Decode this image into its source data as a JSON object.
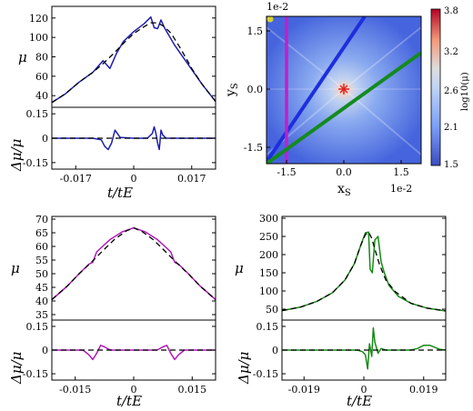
{
  "colors": {
    "panel1": "#1f1fb0",
    "panel3": "#b018b8",
    "panel4": "#168a16",
    "model": "#000000",
    "line_blue": "#1e2fdc",
    "line_magenta": "#c020c8",
    "line_green": "#158a20",
    "source_dot": "#d8d030",
    "lens": "#e02020"
  },
  "map": {
    "xlabel": "x",
    "xlabel_sub": "S",
    "ylabel": "y",
    "ylabel_sub": "S",
    "offset_top": "1e-2",
    "offset_bottom": "1e-2",
    "xticks": [
      "-1.5",
      "0.0",
      "1.5"
    ],
    "yticks": [
      "1.5",
      "0.0",
      "-1.5"
    ],
    "colorbar_label": "log10(μ)",
    "colorbar_ticks": [
      "3.8",
      "3.2",
      "2.6",
      "2.1",
      "1.5"
    ],
    "colormap": "coolwarm"
  },
  "chart_data": [
    {
      "id": "panel1-mag",
      "type": "line",
      "xlabel": "t/tE",
      "ylabel": "μ",
      "xlim": [
        -0.024,
        0.024
      ],
      "ylim": [
        28,
        132
      ],
      "yticks": [
        "120",
        "100",
        "80",
        "60",
        "40"
      ],
      "xticks": [],
      "series": [
        {
          "role": "data",
          "color": "#1f1fb0",
          "x": [
            -0.024,
            -0.02,
            -0.016,
            -0.012,
            -0.009,
            -0.007,
            -0.005,
            -0.003,
            0.0,
            0.003,
            0.005,
            0.006,
            0.007,
            0.008,
            0.009,
            0.01,
            0.012,
            0.014,
            0.017,
            0.02,
            0.024
          ],
          "y": [
            33,
            42,
            54,
            64,
            76,
            68,
            84,
            96,
            106,
            114,
            121,
            110,
            109,
            118,
            110,
            104,
            92,
            82,
            67,
            52,
            34
          ]
        },
        {
          "role": "model",
          "color": "#000000",
          "dashed": true,
          "x": [
            -0.024,
            -0.02,
            -0.016,
            -0.012,
            -0.009,
            -0.006,
            -0.003,
            0.0,
            0.003,
            0.005,
            0.007,
            0.009,
            0.011,
            0.014,
            0.017,
            0.02,
            0.024
          ],
          "y": [
            33,
            42,
            54,
            64,
            73,
            83,
            94,
            104,
            111,
            115,
            115,
            111,
            104,
            87,
            68,
            52,
            34
          ]
        }
      ]
    },
    {
      "id": "panel1-resid",
      "type": "line",
      "xlabel": "t/tE",
      "ylabel": "Δμ/μ",
      "xlim": [
        -0.024,
        0.024
      ],
      "ylim": [
        -0.19,
        0.19
      ],
      "yticks": [
        "0.15",
        "0",
        "-0.15"
      ],
      "xticks": [
        "-0.017",
        "0",
        "0.017"
      ],
      "series": [
        {
          "role": "data",
          "color": "#1f1fb0",
          "x": [
            -0.024,
            -0.012,
            -0.0095,
            -0.0085,
            -0.0075,
            -0.0065,
            -0.0055,
            -0.004,
            0.0,
            0.004,
            0.0055,
            0.006,
            0.0065,
            0.007,
            0.0075,
            0.008,
            0.0085,
            0.0095,
            0.012,
            0.024
          ],
          "y": [
            0,
            0,
            -0.01,
            -0.05,
            -0.07,
            -0.03,
            0.05,
            0.005,
            0,
            0,
            0.03,
            0.07,
            0.03,
            -0.03,
            -0.07,
            0.05,
            0.02,
            0,
            0,
            0
          ]
        },
        {
          "role": "model",
          "color": "#000000",
          "dashed": true,
          "x": [
            -0.024,
            0.024
          ],
          "y": [
            0,
            0
          ]
        }
      ]
    },
    {
      "id": "panel3-mag",
      "type": "line",
      "xlabel": "t/tE",
      "ylabel": "μ",
      "xlim": [
        -0.021,
        0.021
      ],
      "ylim": [
        33,
        71
      ],
      "yticks": [
        "70",
        "65",
        "60",
        "55",
        "50",
        "45",
        "40",
        "35"
      ],
      "xticks": [],
      "series": [
        {
          "role": "data",
          "color": "#b018b8",
          "x": [
            -0.021,
            -0.017,
            -0.014,
            -0.0115,
            -0.0105,
            -0.0095,
            -0.008,
            -0.006,
            -0.003,
            0.0,
            0.003,
            0.006,
            0.008,
            0.0095,
            0.0105,
            0.0115,
            0.014,
            0.017,
            0.021
          ],
          "y": [
            40.5,
            45.5,
            50,
            53.5,
            54.2,
            58,
            60,
            62.6,
            65.3,
            66.8,
            65.3,
            62.6,
            60,
            58,
            54.2,
            53.5,
            50,
            45.5,
            40.5
          ]
        },
        {
          "role": "model",
          "color": "#000000",
          "dashed": true,
          "x": [
            -0.021,
            -0.017,
            -0.014,
            -0.011,
            -0.008,
            -0.005,
            -0.002,
            0.0,
            0.002,
            0.005,
            0.008,
            0.011,
            0.014,
            0.017,
            0.021
          ],
          "y": [
            40.5,
            45.5,
            50,
            54,
            58.3,
            62.5,
            65.6,
            66.8,
            65.6,
            62.5,
            58.3,
            54,
            50,
            45.5,
            40.5
          ]
        }
      ]
    },
    {
      "id": "panel3-resid",
      "type": "line",
      "xlabel": "t/tE",
      "ylabel": "Δμ/μ",
      "xlim": [
        -0.021,
        0.021
      ],
      "ylim": [
        -0.19,
        0.19
      ],
      "yticks": [
        "0.15",
        "0",
        "-0.15"
      ],
      "xticks": [
        "-0.015",
        "0",
        "0.015"
      ],
      "series": [
        {
          "role": "data",
          "color": "#b018b8",
          "x": [
            -0.021,
            -0.013,
            -0.0115,
            -0.0105,
            -0.0095,
            -0.0085,
            -0.0075,
            -0.006,
            0.0,
            0.006,
            0.0075,
            0.0085,
            0.0095,
            0.0105,
            0.0115,
            0.013,
            0.021
          ],
          "y": [
            0,
            0,
            -0.03,
            -0.06,
            -0.02,
            0.03,
            0.02,
            0,
            0,
            0,
            0.02,
            0.03,
            -0.02,
            -0.06,
            -0.03,
            0,
            0
          ]
        },
        {
          "role": "model",
          "color": "#000000",
          "dashed": true,
          "x": [
            -0.021,
            0.021
          ],
          "y": [
            0,
            0
          ]
        }
      ]
    },
    {
      "id": "panel4-mag",
      "type": "line",
      "xlabel": "t/tE",
      "ylabel": "μ",
      "xlim": [
        -0.026,
        0.026
      ],
      "ylim": [
        20,
        305
      ],
      "yticks": [
        "300",
        "250",
        "200",
        "150",
        "100",
        "50"
      ],
      "xticks": [],
      "series": [
        {
          "role": "data",
          "color": "#168a16",
          "x": [
            -0.026,
            -0.02,
            -0.015,
            -0.01,
            -0.006,
            -0.003,
            -0.001,
            0.0005,
            0.0015,
            0.002,
            0.0027,
            0.0035,
            0.0045,
            0.0055,
            0.0065,
            0.008,
            0.011,
            0.015,
            0.02,
            0.026
          ],
          "y": [
            46,
            56,
            71,
            95,
            130,
            175,
            225,
            260,
            262,
            160,
            150,
            240,
            250,
            180,
            150,
            115,
            85,
            66,
            53,
            45
          ]
        },
        {
          "role": "model",
          "color": "#000000",
          "dashed": true,
          "x": [
            -0.026,
            -0.02,
            -0.015,
            -0.01,
            -0.006,
            -0.003,
            -0.001,
            0.0005,
            0.0015,
            0.0025,
            0.0035,
            0.005,
            0.007,
            0.01,
            0.015,
            0.02,
            0.026
          ],
          "y": [
            46,
            56,
            71,
            95,
            130,
            175,
            225,
            255,
            262,
            245,
            215,
            172,
            130,
            98,
            66,
            53,
            45
          ]
        }
      ]
    },
    {
      "id": "panel4-resid",
      "type": "line",
      "xlabel": "t/tE",
      "ylabel": "Δμ/μ",
      "xlim": [
        -0.026,
        0.026
      ],
      "ylim": [
        -0.19,
        0.19
      ],
      "yticks": [
        "0.15",
        "0",
        "-0.15"
      ],
      "xticks": [
        "-0.019",
        "0",
        "0.019"
      ],
      "series": [
        {
          "role": "data",
          "color": "#168a16",
          "x": [
            -0.026,
            -0.002,
            -0.0005,
            0.0005,
            0.0012,
            0.0018,
            0.0025,
            0.003,
            0.0035,
            0.0045,
            0.0055,
            0.007,
            0.015,
            0.017,
            0.019,
            0.021,
            0.024,
            0.026
          ],
          "y": [
            0,
            0,
            -0.01,
            -0.03,
            -0.12,
            0.04,
            -0.04,
            0.14,
            0.05,
            -0.02,
            0.01,
            0,
            0,
            0.01,
            0.03,
            0.03,
            0.005,
            0
          ]
        },
        {
          "role": "model",
          "color": "#000000",
          "dashed": true,
          "x": [
            -0.026,
            0.026
          ],
          "y": [
            0,
            0
          ]
        }
      ]
    }
  ]
}
